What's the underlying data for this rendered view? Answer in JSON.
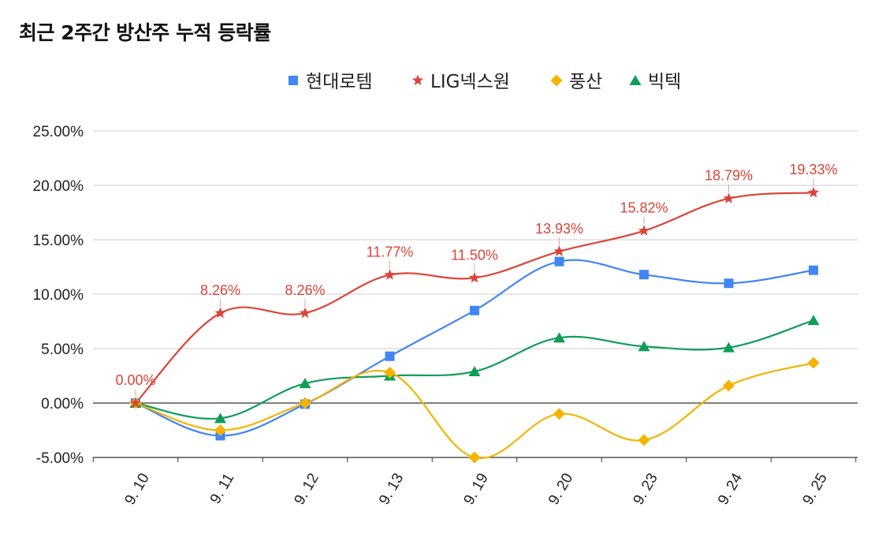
{
  "chart_data": {
    "type": "line",
    "title": "최근 2주간 방산주 누적 등락률",
    "categories": [
      "9. 10",
      "9. 11",
      "9. 12",
      "9. 13",
      "9. 19",
      "9. 20",
      "9. 23",
      "9. 24",
      "9. 25"
    ],
    "y_ticks": [
      "25.00%",
      "20.00%",
      "15.00%",
      "10.00%",
      "5.00%",
      "0.00%",
      "-5.00%"
    ],
    "ylim": [
      -5,
      25
    ],
    "grid": true,
    "legend_position": "top",
    "series": [
      {
        "name": "현대로템",
        "color": "#4285f4",
        "marker": "square",
        "values": [
          0,
          -3.0,
          -0.1,
          4.3,
          8.5,
          13.0,
          11.8,
          11.0,
          12.2
        ]
      },
      {
        "name": "LIG넥스원",
        "color": "#db4437",
        "marker": "star",
        "values": [
          0,
          8.26,
          8.26,
          11.77,
          11.5,
          13.93,
          15.82,
          18.79,
          19.33
        ],
        "labels": [
          "0.00%",
          "8.26%",
          "8.26%",
          "11.77%",
          "11.50%",
          "13.93%",
          "15.82%",
          "18.79%",
          "19.33%"
        ]
      },
      {
        "name": "풍산",
        "color": "#f4b400",
        "marker": "diamond",
        "values": [
          0,
          -2.5,
          0,
          2.8,
          -5.0,
          -1.0,
          -3.4,
          1.6,
          3.7
        ]
      },
      {
        "name": "빅텍",
        "color": "#0f9d58",
        "marker": "triangle",
        "values": [
          0,
          -1.4,
          1.8,
          2.5,
          2.9,
          6.0,
          5.2,
          5.1,
          7.6
        ]
      }
    ]
  }
}
